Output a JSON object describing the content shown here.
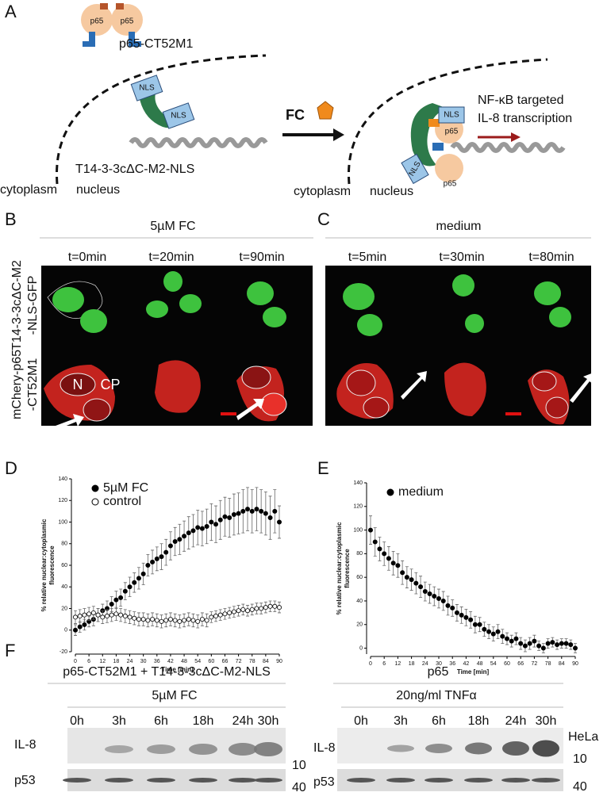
{
  "panel_a": {
    "label": "A",
    "fusion_label": "p65-CT52M1",
    "p65": "p65",
    "nls": "NLS",
    "construct_label": "T14-3-3cΔC-M2-NLS",
    "cytoplasm": "cytoplasm",
    "nucleus": "nucleus",
    "inducer": "FC",
    "outcome": [
      "NF-κB targeted",
      "IL-8 transcription"
    ]
  },
  "panel_b": {
    "label": "B",
    "condition": "5µM FC",
    "times": [
      "t=0min",
      "t=20min",
      "t=90min"
    ],
    "row_top": [
      "T14-3-3cΔC-M2",
      "-NLS-GFP"
    ],
    "row_bottom": [
      "mChery-p65",
      "-CT52M1"
    ],
    "annotations": [
      "N",
      "CP"
    ]
  },
  "panel_c": {
    "label": "C",
    "condition": "medium",
    "times": [
      "t=5min",
      "t=30min",
      "t=80min"
    ]
  },
  "chart_data": [
    {
      "type": "scatter",
      "panel": "D",
      "xlabel": "Time [min]",
      "ylabel": [
        "% relative nuclear:cytoplasmic",
        "fluorescence"
      ],
      "x": [
        0,
        2,
        4,
        6,
        8,
        10,
        12,
        14,
        16,
        18,
        20,
        22,
        24,
        26,
        28,
        30,
        32,
        34,
        36,
        38,
        40,
        42,
        44,
        46,
        48,
        50,
        52,
        54,
        56,
        58,
        60,
        62,
        64,
        66,
        68,
        70,
        72,
        74,
        76,
        78,
        80,
        82,
        84,
        86,
        88,
        90
      ],
      "series": [
        {
          "name": "5µM FC",
          "color": "#000000",
          "marker": "filled",
          "values": [
            0,
            3,
            5,
            8,
            10,
            14,
            18,
            20,
            24,
            28,
            30,
            36,
            40,
            44,
            48,
            52,
            60,
            63,
            66,
            68,
            72,
            78,
            82,
            84,
            87,
            90,
            92,
            95,
            94,
            96,
            100,
            98,
            102,
            105,
            104,
            107,
            108,
            110,
            112,
            110,
            112,
            110,
            108,
            104,
            110,
            100
          ],
          "errors": [
            5,
            5,
            5,
            5,
            6,
            6,
            6,
            7,
            7,
            8,
            8,
            8,
            9,
            9,
            10,
            10,
            10,
            11,
            11,
            12,
            12,
            13,
            13,
            14,
            14,
            15,
            15,
            16,
            16,
            16,
            17,
            17,
            18,
            18,
            18,
            19,
            19,
            20,
            20,
            20,
            20,
            20,
            20,
            20,
            20,
            15
          ]
        },
        {
          "name": "control",
          "color": "#000000",
          "marker": "open",
          "values": [
            12,
            13,
            14,
            15,
            16,
            14,
            12,
            13,
            14,
            15,
            14,
            13,
            12,
            11,
            10,
            10,
            9,
            10,
            9,
            8,
            9,
            10,
            9,
            8,
            9,
            10,
            9,
            8,
            10,
            9,
            12,
            13,
            14,
            15,
            16,
            17,
            18,
            19,
            18,
            19,
            20,
            20,
            21,
            22,
            22,
            21
          ],
          "errors": [
            6,
            6,
            6,
            6,
            6,
            6,
            6,
            6,
            6,
            6,
            6,
            6,
            6,
            6,
            6,
            6,
            6,
            6,
            6,
            6,
            6,
            6,
            6,
            6,
            6,
            6,
            6,
            6,
            6,
            6,
            5,
            5,
            5,
            5,
            5,
            5,
            5,
            5,
            5,
            5,
            5,
            5,
            5,
            5,
            5,
            5
          ]
        }
      ],
      "xlim": [
        0,
        90
      ],
      "xticks": [
        0,
        6,
        12,
        18,
        24,
        30,
        36,
        42,
        48,
        54,
        60,
        66,
        72,
        78,
        84,
        90
      ],
      "ylim": [
        -20,
        140
      ],
      "yticks": [
        -20,
        0,
        20,
        40,
        60,
        80,
        100,
        120,
        140
      ],
      "legend": "top-left"
    },
    {
      "type": "scatter",
      "panel": "E",
      "xlabel": "Time [min]",
      "ylabel": [
        "% relative nuclear:cytoplasmic",
        "fluorescence"
      ],
      "x": [
        0,
        2,
        4,
        6,
        8,
        10,
        12,
        14,
        16,
        18,
        20,
        22,
        24,
        26,
        28,
        30,
        32,
        34,
        36,
        38,
        40,
        42,
        44,
        46,
        48,
        50,
        52,
        54,
        56,
        58,
        60,
        62,
        64,
        66,
        68,
        70,
        72,
        74,
        76,
        78,
        80,
        82,
        84,
        86,
        88,
        90
      ],
      "series": [
        {
          "name": "medium",
          "color": "#000000",
          "marker": "filled",
          "values": [
            100,
            90,
            84,
            80,
            76,
            72,
            70,
            64,
            60,
            58,
            55,
            52,
            48,
            46,
            44,
            42,
            40,
            36,
            34,
            30,
            28,
            26,
            24,
            20,
            20,
            16,
            14,
            12,
            14,
            10,
            8,
            6,
            8,
            4,
            2,
            4,
            6,
            2,
            0,
            4,
            5,
            3,
            4,
            4,
            3,
            0
          ],
          "errors": [
            12,
            12,
            10,
            10,
            10,
            10,
            10,
            10,
            9,
            9,
            9,
            9,
            8,
            8,
            8,
            8,
            8,
            8,
            7,
            7,
            7,
            7,
            7,
            7,
            6,
            6,
            6,
            6,
            6,
            6,
            5,
            5,
            5,
            5,
            5,
            5,
            5,
            4,
            4,
            4,
            4,
            4,
            4,
            4,
            4,
            4
          ]
        }
      ],
      "xlim": [
        0,
        90
      ],
      "xticks": [
        0,
        6,
        12,
        18,
        24,
        30,
        36,
        42,
        48,
        54,
        60,
        66,
        72,
        78,
        84,
        90
      ],
      "ylim": [
        -5,
        140
      ],
      "yticks": [
        0,
        20,
        40,
        60,
        80,
        100,
        120,
        140
      ],
      "legend": "top-left"
    }
  ],
  "panel_f": {
    "label": "F",
    "left_header": "p65-CT52M1 + T14-3-3cΔC-M2-NLS",
    "left_condition": "5µM FC",
    "left_times": [
      "0h",
      "3h",
      "6h",
      "18h",
      "24h",
      "30h"
    ],
    "right_header": "p65",
    "right_condition": "20ng/ml TNFα",
    "right_times": [
      "0h",
      "3h",
      "6h",
      "18h",
      "24h",
      "30h"
    ],
    "cell_line": "HeLa",
    "blot_il8": "IL-8",
    "blot_p53": "p53",
    "marker_10": "10",
    "marker_40": "40"
  }
}
